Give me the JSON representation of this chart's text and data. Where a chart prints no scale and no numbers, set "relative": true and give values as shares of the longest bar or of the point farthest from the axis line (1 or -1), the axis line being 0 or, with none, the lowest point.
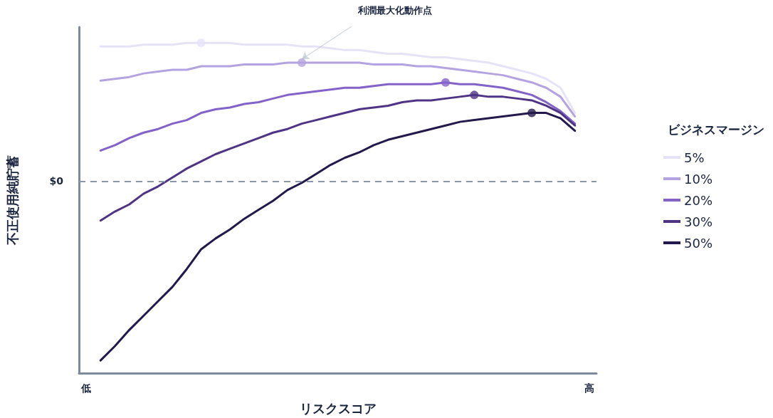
{
  "chart_data": {
    "type": "line",
    "relative": true,
    "xlabel": "リスクスコア",
    "ylabel": "不正使用純貯蓄",
    "legend_title": "ビジネスマージン",
    "legend": "right",
    "grid": false,
    "marker": "none",
    "line_style": "solid",
    "categories": [
      "低",
      null,
      null,
      null,
      null,
      null,
      null,
      null,
      null,
      null,
      null,
      null,
      null,
      null,
      null,
      null,
      null,
      null,
      null,
      null,
      null,
      null,
      null,
      null,
      null,
      null,
      null,
      null,
      null,
      null,
      null,
      null,
      null,
      null,
      null,
      "高"
    ],
    "ref_lines": [
      {
        "axis": "y",
        "value": 0,
        "label": "$0",
        "color": "#8a97aa",
        "line_style": "dashed"
      }
    ],
    "annotations": [
      "利潤最大化動作点"
    ],
    "series": [
      {
        "name": "5%",
        "color": "#e6e3f7",
        "values": [
          null,
          0.75,
          0.75,
          0.75,
          0.76,
          0.76,
          0.76,
          0.77,
          0.77,
          0.77,
          0.77,
          0.76,
          0.76,
          0.76,
          0.76,
          0.75,
          0.75,
          0.74,
          0.73,
          0.73,
          0.72,
          0.71,
          0.71,
          0.7,
          0.69,
          0.69,
          0.68,
          0.67,
          0.66,
          0.64,
          0.62,
          0.6,
          0.57,
          0.52,
          0.38,
          null
        ]
      },
      {
        "name": "10%",
        "color": "#b3a3e0",
        "values": [
          null,
          0.56,
          0.57,
          0.58,
          0.6,
          0.61,
          0.62,
          0.62,
          0.64,
          0.64,
          0.64,
          0.65,
          0.65,
          0.65,
          0.66,
          0.66,
          0.66,
          0.66,
          0.66,
          0.66,
          0.65,
          0.65,
          0.65,
          0.64,
          0.64,
          0.63,
          0.62,
          0.61,
          0.6,
          0.59,
          0.57,
          0.55,
          0.52,
          0.47,
          0.36,
          null
        ]
      },
      {
        "name": "20%",
        "color": "#8463c9",
        "values": [
          null,
          0.17,
          0.2,
          0.24,
          0.27,
          0.29,
          0.32,
          0.34,
          0.38,
          0.4,
          0.41,
          0.43,
          0.44,
          0.46,
          0.48,
          0.49,
          0.5,
          0.51,
          0.52,
          0.52,
          0.53,
          0.54,
          0.54,
          0.54,
          0.54,
          0.55,
          0.54,
          0.54,
          0.53,
          0.52,
          0.5,
          0.48,
          0.44,
          0.39,
          0.32,
          null
        ]
      },
      {
        "name": "30%",
        "color": "#4f3486",
        "values": [
          null,
          -0.22,
          -0.17,
          -0.13,
          -0.07,
          -0.03,
          0.02,
          0.07,
          0.11,
          0.15,
          0.18,
          0.21,
          0.24,
          0.27,
          0.29,
          0.32,
          0.34,
          0.36,
          0.38,
          0.4,
          0.41,
          0.42,
          0.44,
          0.45,
          0.45,
          0.46,
          0.47,
          0.48,
          0.47,
          0.47,
          0.46,
          0.45,
          0.42,
          0.38,
          0.31,
          null
        ]
      },
      {
        "name": "50%",
        "color": "#23194a",
        "values": [
          null,
          -1,
          -0.92,
          -0.83,
          -0.75,
          -0.67,
          -0.59,
          -0.49,
          -0.38,
          -0.32,
          -0.27,
          -0.21,
          -0.16,
          -0.11,
          -0.05,
          -0.01,
          0.04,
          0.09,
          0.13,
          0.16,
          0.2,
          0.23,
          0.25,
          0.27,
          0.29,
          0.31,
          0.33,
          0.34,
          0.35,
          0.36,
          0.37,
          0.38,
          0.38,
          0.35,
          0.28,
          null
        ]
      },
      {
        "type": "scatter",
        "marker": "circle",
        "values": [
          null,
          null,
          null,
          null,
          null,
          null,
          null,
          null,
          0.77,
          null,
          null,
          null,
          null,
          null,
          null,
          0.66,
          null,
          null,
          null,
          null,
          null,
          null,
          null,
          null,
          null,
          0.55,
          null,
          0.48,
          null,
          null,
          null,
          0.38,
          null,
          null,
          null,
          null
        ],
        "colors": [
          "#e6e3f7",
          "#e6e3f7",
          "#e6e3f7",
          "#e6e3f7",
          "#e6e3f7",
          "#e6e3f7",
          "#e6e3f7",
          "#e6e3f7",
          "#e6e3f7",
          "#b3a3e0",
          "#b3a3e0",
          "#b3a3e0",
          "#b3a3e0",
          "#b3a3e0",
          "#b3a3e0",
          "#b3a3e0",
          "#8463c9",
          "#8463c9",
          "#8463c9",
          "#8463c9",
          "#8463c9",
          "#8463c9",
          "#8463c9",
          "#8463c9",
          "#8463c9",
          "#8463c9",
          "#4f3486",
          "#4f3486",
          "#4f3486",
          "#4f3486",
          "#23194a",
          "#23194a",
          "#23194a",
          "#23194a",
          "#23194a",
          "#23194a"
        ]
      }
    ]
  }
}
